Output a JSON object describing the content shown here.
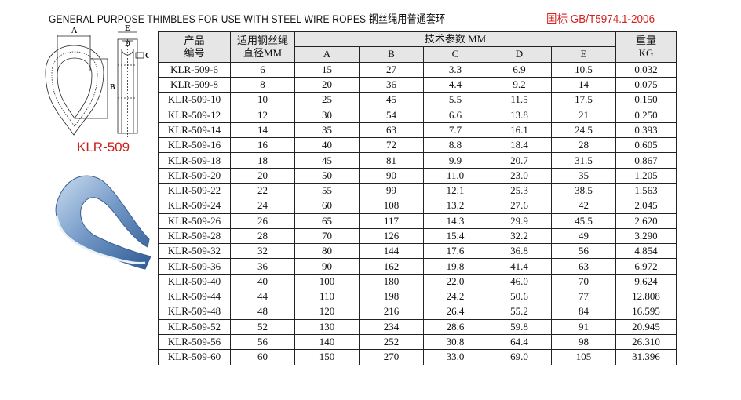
{
  "title": "GENERAL PURPOSE THIMBLES FOR USE WITH STEEL WIRE ROPES  钢丝绳用普通套环",
  "standard": "国标 GB/T5974.1-2006",
  "model": "KLR-509",
  "diagram_labels": {
    "a": "A",
    "b": "B",
    "c": "C",
    "d": "D",
    "e": "E"
  },
  "table": {
    "headers": {
      "product_no_line1": "产品",
      "product_no_line2": "编号",
      "rope_dia_line1": "适用钢丝绳",
      "rope_dia_line2": "直径MM",
      "tech_params": "技术参数 MM",
      "weight_line1": "重量",
      "weight_line2": "KG",
      "dims": [
        "A",
        "B",
        "C",
        "D",
        "E"
      ]
    },
    "rows": [
      [
        "KLR-509-6",
        "6",
        "15",
        "27",
        "3.3",
        "6.9",
        "10.5",
        "0.032"
      ],
      [
        "KLR-509-8",
        "8",
        "20",
        "36",
        "4.4",
        "9.2",
        "14",
        "0.075"
      ],
      [
        "KLR-509-10",
        "10",
        "25",
        "45",
        "5.5",
        "11.5",
        "17.5",
        "0.150"
      ],
      [
        "KLR-509-12",
        "12",
        "30",
        "54",
        "6.6",
        "13.8",
        "21",
        "0.250"
      ],
      [
        "KLR-509-14",
        "14",
        "35",
        "63",
        "7.7",
        "16.1",
        "24.5",
        "0.393"
      ],
      [
        "KLR-509-16",
        "16",
        "40",
        "72",
        "8.8",
        "18.4",
        "28",
        "0.605"
      ],
      [
        "KLR-509-18",
        "18",
        "45",
        "81",
        "9.9",
        "20.7",
        "31.5",
        "0.867"
      ],
      [
        "KLR-509-20",
        "20",
        "50",
        "90",
        "11.0",
        "23.0",
        "35",
        "1.205"
      ],
      [
        "KLR-509-22",
        "22",
        "55",
        "99",
        "12.1",
        "25.3",
        "38.5",
        "1.563"
      ],
      [
        "KLR-509-24",
        "24",
        "60",
        "108",
        "13.2",
        "27.6",
        "42",
        "2.045"
      ],
      [
        "KLR-509-26",
        "26",
        "65",
        "117",
        "14.3",
        "29.9",
        "45.5",
        "2.620"
      ],
      [
        "KLR-509-28",
        "28",
        "70",
        "126",
        "15.4",
        "32.2",
        "49",
        "3.290"
      ],
      [
        "KLR-509-32",
        "32",
        "80",
        "144",
        "17.6",
        "36.8",
        "56",
        "4.854"
      ],
      [
        "KLR-509-36",
        "36",
        "90",
        "162",
        "19.8",
        "41.4",
        "63",
        "6.972"
      ],
      [
        "KLR-509-40",
        "40",
        "100",
        "180",
        "22.0",
        "46.0",
        "70",
        "9.624"
      ],
      [
        "KLR-509-44",
        "44",
        "110",
        "198",
        "24.2",
        "50.6",
        "77",
        "12.808"
      ],
      [
        "KLR-509-48",
        "48",
        "120",
        "216",
        "26.4",
        "55.2",
        "84",
        "16.595"
      ],
      [
        "KLR-509-52",
        "52",
        "130",
        "234",
        "28.6",
        "59.8",
        "91",
        "20.945"
      ],
      [
        "KLR-509-56",
        "56",
        "140",
        "252",
        "30.8",
        "64.4",
        "98",
        "26.310"
      ],
      [
        "KLR-509-60",
        "60",
        "150",
        "270",
        "33.0",
        "69.0",
        "105",
        "31.396"
      ]
    ]
  },
  "colors": {
    "standard_text": "#d42020",
    "model_label": "#c8201c",
    "header_bg": "#e6e6e6"
  }
}
